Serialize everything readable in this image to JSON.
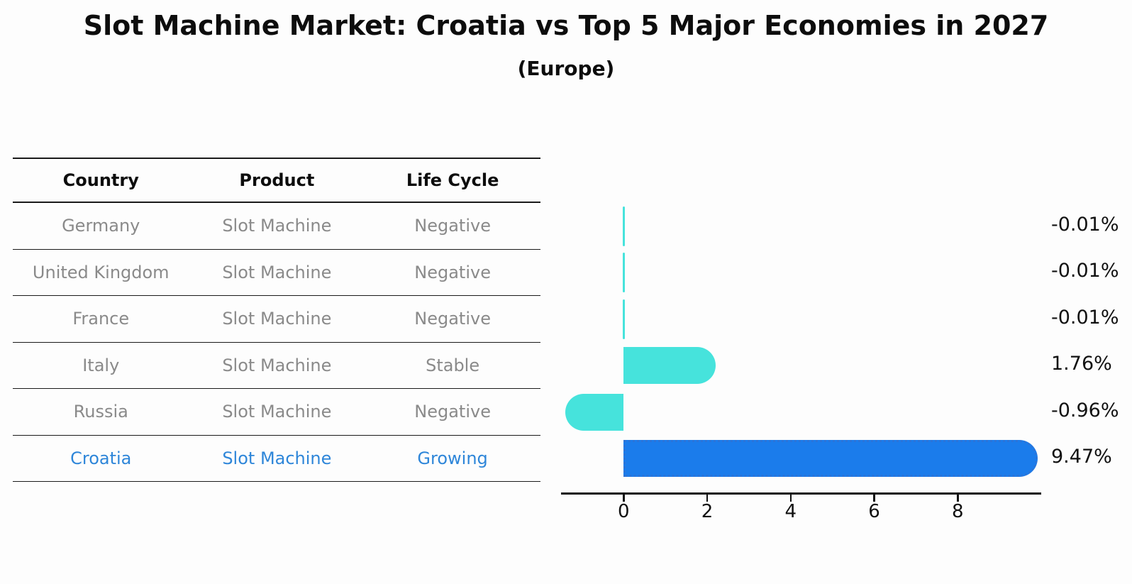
{
  "title": "Slot Machine Market: Croatia vs Top 5 Major Economies in 2027",
  "subtitle": "(Europe)",
  "table": {
    "headers": [
      "Country",
      "Product",
      "Life Cycle"
    ],
    "rows": [
      {
        "country": "Germany",
        "product": "Slot Machine",
        "life_cycle": "Negative",
        "highlight": false
      },
      {
        "country": "United Kingdom",
        "product": "Slot Machine",
        "life_cycle": "Negative",
        "highlight": false
      },
      {
        "country": "France",
        "product": "Slot Machine",
        "life_cycle": "Negative",
        "highlight": false
      },
      {
        "country": "Italy",
        "product": "Slot Machine",
        "life_cycle": "Stable",
        "highlight": false
      },
      {
        "country": "Russia",
        "product": "Slot Machine",
        "life_cycle": "Negative",
        "highlight": false
      },
      {
        "country": "Croatia",
        "product": "Slot Machine",
        "life_cycle": "Growing",
        "highlight": true
      }
    ]
  },
  "chart_data": {
    "type": "bar",
    "orientation": "horizontal",
    "title": "Slot Machine Market: Croatia vs Top 5 Major Economies in 2027",
    "subtitle": "(Europe)",
    "categories": [
      "Germany",
      "United Kingdom",
      "France",
      "Italy",
      "Russia",
      "Croatia"
    ],
    "values": [
      -0.01,
      -0.01,
      -0.01,
      1.76,
      -0.96,
      9.47
    ],
    "value_labels": [
      "-0.01%",
      "-0.01%",
      "-0.01%",
      "1.76%",
      "-0.96%",
      "9.47%"
    ],
    "xlabel": "",
    "ylabel": "",
    "xlim": [
      -1.5,
      10.0
    ],
    "x_ticks": [
      0,
      2,
      4,
      6,
      8
    ],
    "grid": false,
    "legend": false,
    "bar_colors": [
      "#46e3dc",
      "#46e3dc",
      "#46e3dc",
      "#46e3dc",
      "#46e3dc",
      "#1b7ceb"
    ],
    "bar_edge_styles": [
      "none",
      "none",
      "none",
      "none",
      "none",
      "dotted"
    ]
  },
  "colors": {
    "default_bar": "#46e3dc",
    "highlight_bar": "#1b7ceb",
    "highlight_bar_edge": "#2b74d8",
    "highlight_text": "#2e86d9",
    "row_text": "#8a8a8a",
    "header_text": "#111111",
    "axis": "#111111",
    "background": "#fdfdfd"
  }
}
